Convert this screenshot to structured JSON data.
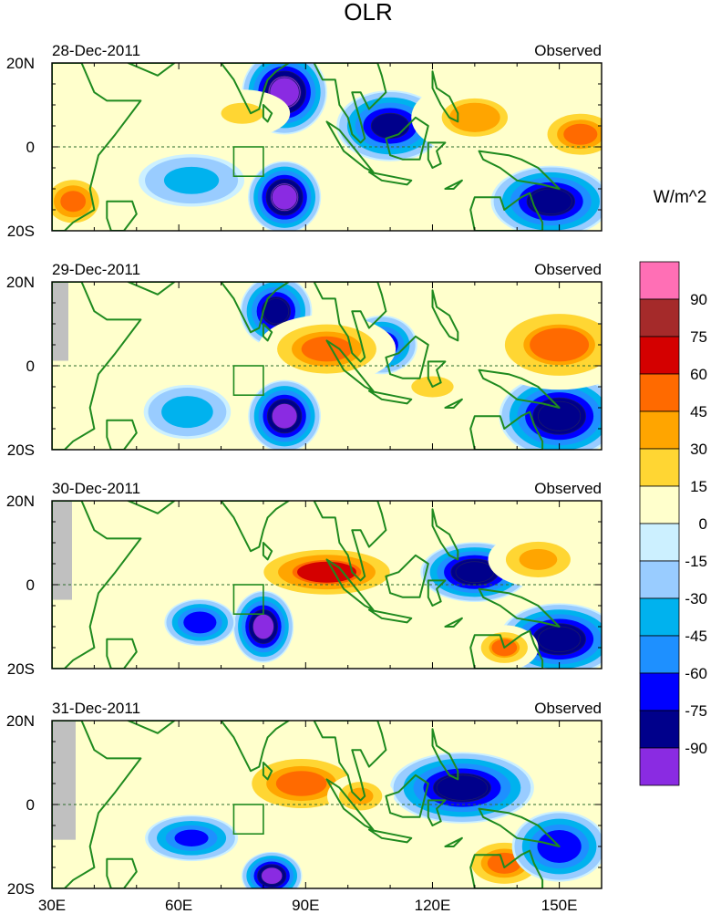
{
  "chart_data": {
    "type": "heatmap",
    "title": "OLR",
    "units": "W/m^2",
    "longitude_range": [
      30,
      160
    ],
    "latitude_range": [
      -20,
      20
    ],
    "x_ticks": [
      {
        "value": 30,
        "label": "30E"
      },
      {
        "value": 60,
        "label": "60E"
      },
      {
        "value": 90,
        "label": "90E"
      },
      {
        "value": 120,
        "label": "120E"
      },
      {
        "value": 150,
        "label": "150E"
      }
    ],
    "y_ticks": [
      {
        "value": 20,
        "label": "20N"
      },
      {
        "value": 0,
        "label": "0"
      },
      {
        "value": -20,
        "label": "20S"
      }
    ],
    "reference_box": {
      "lon": [
        73,
        80
      ],
      "lat": [
        -7,
        0
      ]
    },
    "panels": [
      {
        "date": "28-Dec-2011",
        "label": "Observed",
        "anomalies": [
          {
            "lon": 85,
            "lat": 13,
            "rx": 7,
            "ry": 7,
            "value": -95
          },
          {
            "lon": 85,
            "lat": -12,
            "rx": 6,
            "ry": 6,
            "value": -95
          },
          {
            "lon": 110,
            "lat": 5,
            "rx": 9,
            "ry": 6,
            "value": -75
          },
          {
            "lon": 148,
            "lat": -13,
            "rx": 10,
            "ry": 6,
            "value": -80
          },
          {
            "lon": 63,
            "lat": -8,
            "rx": 10,
            "ry": 5,
            "value": -35
          },
          {
            "lon": 130,
            "lat": 7,
            "rx": 12,
            "ry": 7,
            "value": 35
          },
          {
            "lon": 155,
            "lat": 3,
            "rx": 8,
            "ry": 5,
            "value": 55
          },
          {
            "lon": 35,
            "lat": -13,
            "rx": 6,
            "ry": 5,
            "value": 60
          },
          {
            "lon": 75,
            "lat": 8,
            "rx": 10,
            "ry": 5,
            "value": 25
          }
        ]
      },
      {
        "date": "29-Dec-2011",
        "label": "Observed",
        "anomalies": [
          {
            "lon": 83,
            "lat": 13,
            "rx": 6,
            "ry": 6,
            "value": -80
          },
          {
            "lon": 85,
            "lat": -12,
            "rx": 6,
            "ry": 6,
            "value": -90
          },
          {
            "lon": 150,
            "lat": -12,
            "rx": 10,
            "ry": 7,
            "value": -85
          },
          {
            "lon": 108,
            "lat": 5,
            "rx": 6,
            "ry": 5,
            "value": -70
          },
          {
            "lon": 62,
            "lat": -11,
            "rx": 8,
            "ry": 5,
            "value": -40
          },
          {
            "lon": 95,
            "lat": 4,
            "rx": 12,
            "ry": 6,
            "value": 55
          },
          {
            "lon": 150,
            "lat": 5,
            "rx": 14,
            "ry": 8,
            "value": 50
          },
          {
            "lon": 120,
            "lat": -5,
            "rx": 10,
            "ry": 5,
            "value": 25
          }
        ]
      },
      {
        "date": "30-Dec-2011",
        "label": "Observed",
        "anomalies": [
          {
            "lon": 95,
            "lat": 3,
            "rx": 14,
            "ry": 5,
            "value": 65
          },
          {
            "lon": 80,
            "lat": -10,
            "rx": 5,
            "ry": 6,
            "value": -90
          },
          {
            "lon": 65,
            "lat": -9,
            "rx": 6,
            "ry": 4,
            "value": -70
          },
          {
            "lon": 130,
            "lat": 3,
            "rx": 9,
            "ry": 5,
            "value": -85
          },
          {
            "lon": 150,
            "lat": -13,
            "rx": 10,
            "ry": 6,
            "value": -85
          },
          {
            "lon": 137,
            "lat": -15,
            "rx": 6,
            "ry": 4,
            "value": 50
          },
          {
            "lon": 145,
            "lat": 6,
            "rx": 9,
            "ry": 5,
            "value": 45
          }
        ]
      },
      {
        "date": "31-Dec-2011",
        "label": "Observed",
        "anomalies": [
          {
            "lon": 89,
            "lat": 5,
            "rx": 12,
            "ry": 6,
            "value": 55
          },
          {
            "lon": 82,
            "lat": -17,
            "rx": 5,
            "ry": 4,
            "value": -90
          },
          {
            "lon": 63,
            "lat": -8,
            "rx": 8,
            "ry": 4,
            "value": -60
          },
          {
            "lon": 127,
            "lat": 4,
            "rx": 12,
            "ry": 6,
            "value": -80
          },
          {
            "lon": 137,
            "lat": -14,
            "rx": 8,
            "ry": 5,
            "value": 55
          },
          {
            "lon": 150,
            "lat": -10,
            "rx": 8,
            "ry": 6,
            "value": -70
          },
          {
            "lon": 103,
            "lat": 2,
            "rx": 6,
            "ry": 4,
            "value": 45
          }
        ]
      }
    ],
    "colorbar": {
      "labels": [
        "90",
        "75",
        "60",
        "45",
        "30",
        "15",
        "0",
        "-15",
        "-30",
        "-45",
        "-60",
        "-75",
        "-90"
      ],
      "colors": [
        "#ff6fb5",
        "#a52a2a",
        "#d40000",
        "#ff6a00",
        "#ffa500",
        "#ffd633",
        "#ffffcc",
        "#ccf0ff",
        "#99ccff",
        "#00b2ee",
        "#1e90ff",
        "#0000ff",
        "#00008b",
        "#8a2be2"
      ]
    }
  }
}
